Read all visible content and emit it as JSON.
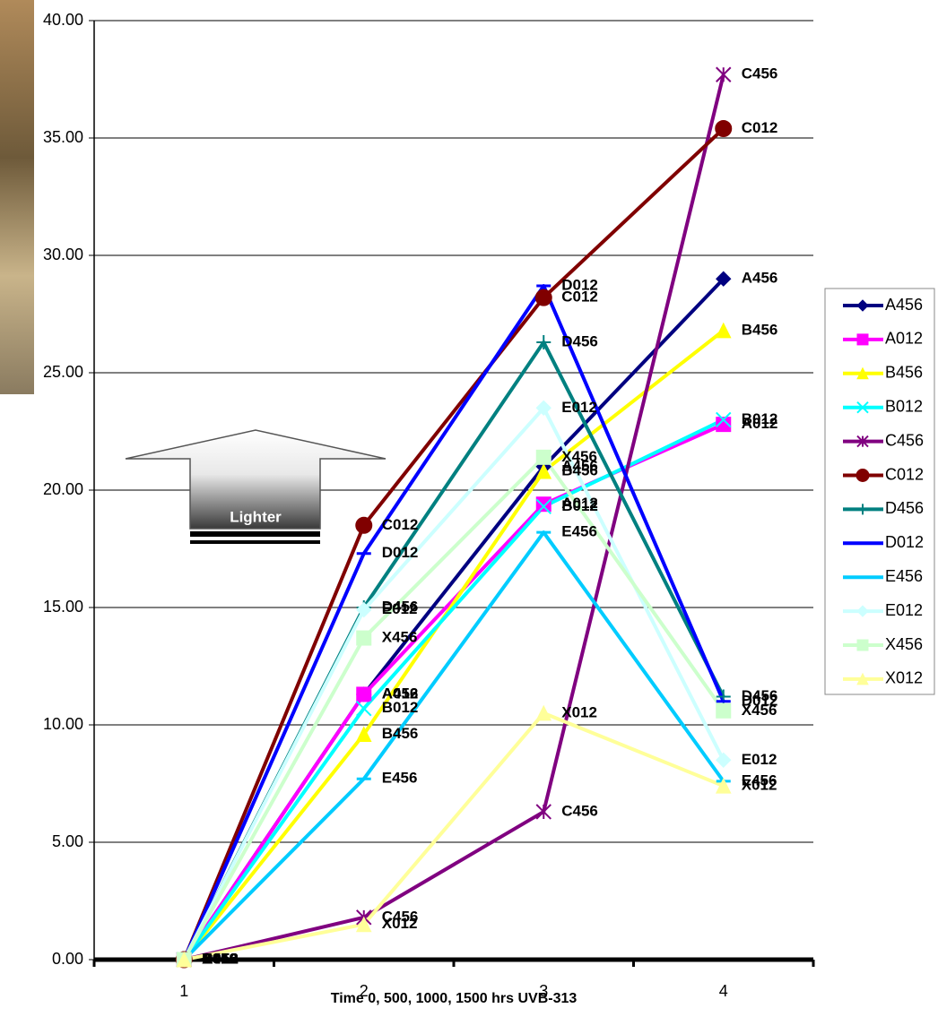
{
  "chart_data": {
    "type": "line",
    "annotation": "Lighter",
    "x_label": "Time 0, 500, 1000, 1500 hrs UVB-313",
    "categories": [
      "1",
      "2",
      "3",
      "4"
    ],
    "ylim": [
      0,
      40
    ],
    "yticks": [
      {
        "value": 0,
        "label": "0.00"
      },
      {
        "value": 5,
        "label": "5.00"
      },
      {
        "value": 10,
        "label": "10.00"
      },
      {
        "value": 15,
        "label": "15.00"
      },
      {
        "value": 20,
        "label": "20.00"
      },
      {
        "value": 25,
        "label": "25.00"
      },
      {
        "value": 30,
        "label": "30.00"
      },
      {
        "value": 35,
        "label": "35.00"
      },
      {
        "value": 40,
        "label": "40.00"
      }
    ],
    "grid": true,
    "legend": "right",
    "series": [
      {
        "name": "A456",
        "color": "#000080",
        "marker": "diamond",
        "values": [
          0,
          11.3,
          21.0,
          29.0
        ]
      },
      {
        "name": "A012",
        "color": "#ff00ff",
        "marker": "square",
        "values": [
          0,
          11.3,
          19.4,
          22.8
        ]
      },
      {
        "name": "B456",
        "color": "#ffff00",
        "marker": "triangle",
        "values": [
          0,
          9.6,
          20.8,
          26.8
        ]
      },
      {
        "name": "B012",
        "color": "#00ffff",
        "marker": "x",
        "values": [
          0,
          10.7,
          19.3,
          23.0
        ]
      },
      {
        "name": "C456",
        "color": "#800080",
        "marker": "star",
        "values": [
          0,
          1.8,
          6.3,
          37.7
        ]
      },
      {
        "name": "C012",
        "color": "#800000",
        "marker": "circle",
        "values": [
          0,
          18.5,
          28.2,
          35.4
        ]
      },
      {
        "name": "D456",
        "color": "#008080",
        "marker": "plus",
        "values": [
          0,
          15.0,
          26.3,
          11.2
        ]
      },
      {
        "name": "D012",
        "color": "#0000ff",
        "marker": "dash",
        "values": [
          0,
          17.3,
          28.7,
          11.0
        ]
      },
      {
        "name": "E456",
        "color": "#00ccff",
        "marker": "dash",
        "values": [
          0,
          7.7,
          18.2,
          7.6
        ]
      },
      {
        "name": "E012",
        "color": "#ccffff",
        "marker": "diamond",
        "values": [
          0,
          14.9,
          23.5,
          8.5
        ]
      },
      {
        "name": "X456",
        "color": "#ccffcc",
        "marker": "square",
        "values": [
          0,
          13.7,
          21.4,
          10.6
        ]
      },
      {
        "name": "X012",
        "color": "#ffff99",
        "marker": "triangle",
        "values": [
          0,
          1.5,
          10.5,
          7.4
        ]
      }
    ]
  }
}
